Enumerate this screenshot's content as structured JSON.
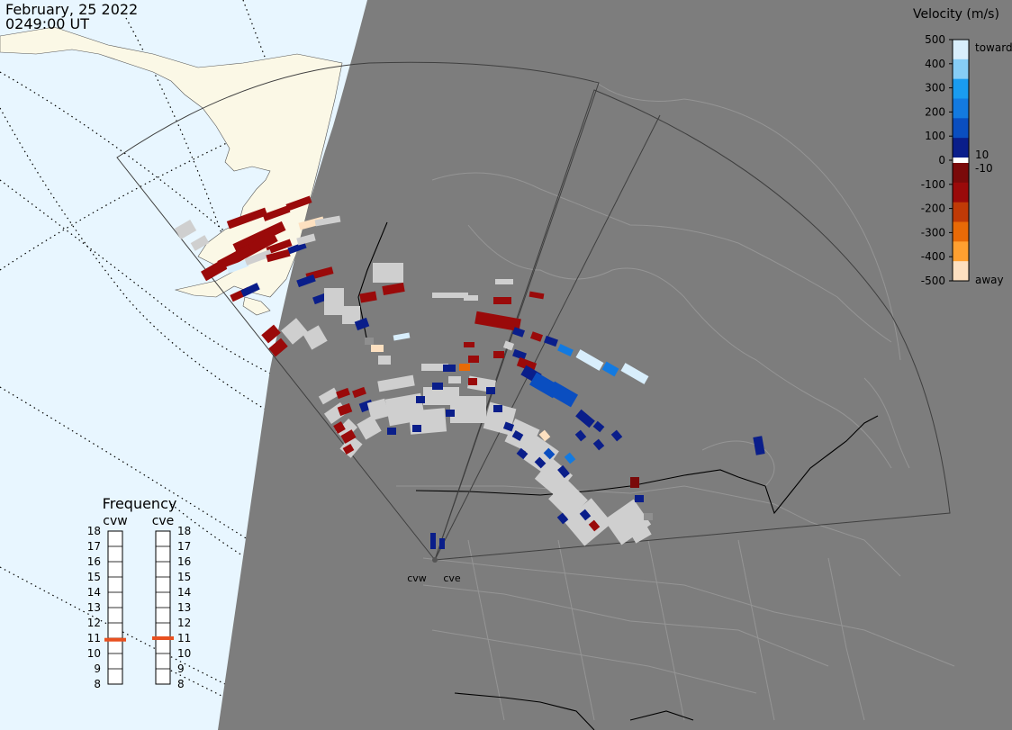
{
  "header": {
    "date": "February, 25 2022",
    "time": "0249:00 UT"
  },
  "colorbar": {
    "title": "Velocity (m/s)",
    "ticks": [
      "500",
      "400",
      "300",
      "200",
      "100",
      "0",
      "-100",
      "-200",
      "-300",
      "-400",
      "-500"
    ],
    "inner_pos": "10",
    "inner_neg": "-10",
    "top_label": "toward",
    "bottom_label": "away",
    "colors": [
      "#d8eefc",
      "#86cdf6",
      "#1a9cf0",
      "#137ae0",
      "#0a4ec0",
      "#0a1e8a",
      "#7a0a0a",
      "#9a0a0a",
      "#c03a06",
      "#e86a06",
      "#ffa030",
      "#fde0c0"
    ]
  },
  "stations": {
    "west": "cvw",
    "east": "cve"
  },
  "frequency": {
    "title": "Frequency",
    "col_west": "cvw",
    "col_east": "cve",
    "levels": [
      "18",
      "17",
      "16",
      "15",
      "14",
      "13",
      "12",
      "11",
      "10",
      "9",
      "8"
    ],
    "cvw_mhz": 10.9,
    "cve_mhz": 11.0,
    "marker_color": "#e85020"
  },
  "map_colors": {
    "ocean": "#e8f6ff",
    "land": "#fbf8e6",
    "night": "#7d7d7d",
    "border": "#000000",
    "fov_line": "#3f3f3f",
    "gray_cell": "#cfcfcf"
  }
}
